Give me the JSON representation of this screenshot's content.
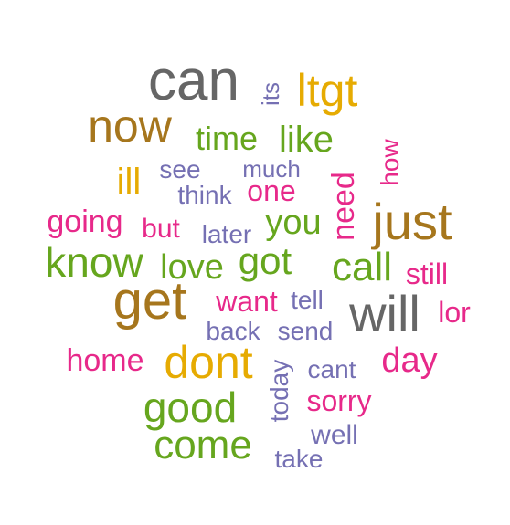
{
  "colors": {
    "gray": "#666666",
    "gold": "#E6AB02",
    "olive": "#A6761D",
    "green": "#66A61E",
    "purple": "#7570B3",
    "pink": "#E7298A",
    "background": "#FFFFFF"
  },
  "words": [
    {
      "text": "can",
      "color": "gray"
    },
    {
      "text": "its",
      "color": "purple"
    },
    {
      "text": "ltgt",
      "color": "gold"
    },
    {
      "text": "now",
      "color": "olive"
    },
    {
      "text": "time",
      "color": "green"
    },
    {
      "text": "like",
      "color": "green"
    },
    {
      "text": "ill",
      "color": "gold"
    },
    {
      "text": "see",
      "color": "purple"
    },
    {
      "text": "much",
      "color": "purple"
    },
    {
      "text": "how",
      "color": "pink"
    },
    {
      "text": "think",
      "color": "purple"
    },
    {
      "text": "one",
      "color": "pink"
    },
    {
      "text": "need",
      "color": "pink"
    },
    {
      "text": "going",
      "color": "pink"
    },
    {
      "text": "but",
      "color": "pink"
    },
    {
      "text": "later",
      "color": "purple"
    },
    {
      "text": "you",
      "color": "green"
    },
    {
      "text": "just",
      "color": "olive"
    },
    {
      "text": "know",
      "color": "green"
    },
    {
      "text": "love",
      "color": "green"
    },
    {
      "text": "got",
      "color": "green"
    },
    {
      "text": "call",
      "color": "green"
    },
    {
      "text": "still",
      "color": "pink"
    },
    {
      "text": "get",
      "color": "olive"
    },
    {
      "text": "want",
      "color": "pink"
    },
    {
      "text": "tell",
      "color": "purple"
    },
    {
      "text": "will",
      "color": "gray"
    },
    {
      "text": "lor",
      "color": "pink"
    },
    {
      "text": "back",
      "color": "purple"
    },
    {
      "text": "send",
      "color": "purple"
    },
    {
      "text": "home",
      "color": "pink"
    },
    {
      "text": "dont",
      "color": "gold"
    },
    {
      "text": "today",
      "color": "purple"
    },
    {
      "text": "cant",
      "color": "purple"
    },
    {
      "text": "day",
      "color": "pink"
    },
    {
      "text": "good",
      "color": "green"
    },
    {
      "text": "sorry",
      "color": "pink"
    },
    {
      "text": "well",
      "color": "purple"
    },
    {
      "text": "come",
      "color": "green"
    },
    {
      "text": "take",
      "color": "purple"
    }
  ]
}
